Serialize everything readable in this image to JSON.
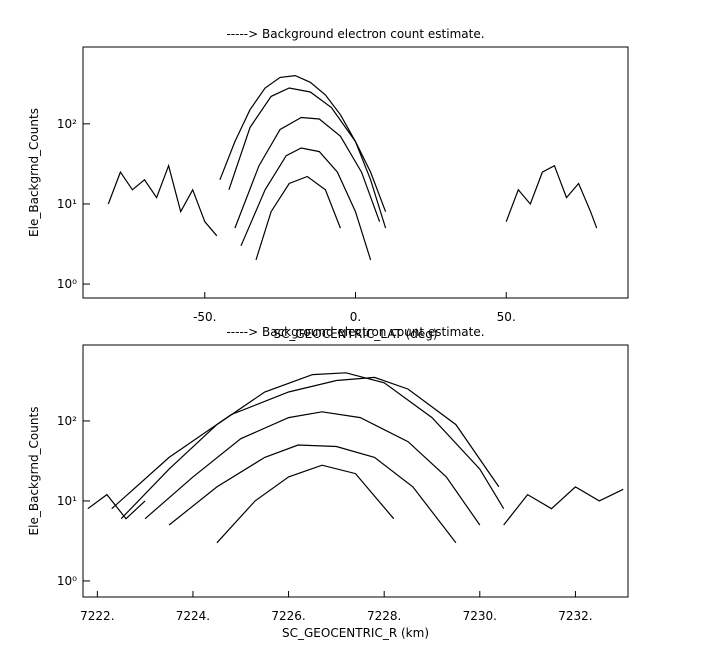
{
  "chart_data": [
    {
      "type": "line",
      "title": "-----> Background electron count estimate.",
      "xlabel": "SC_GEOCENTRIC_LAT (deg)",
      "ylabel": "Ele_Backgrnd_Counts",
      "log_y": true,
      "color": "#000000",
      "xlim": [
        -90.4,
        90.4
      ],
      "ylim": [
        0.67,
        910
      ],
      "xticks": [
        {
          "value": -50,
          "label": "-50."
        },
        {
          "value": 0,
          "label": "0."
        },
        {
          "value": 50,
          "label": "50."
        }
      ],
      "yticks": [
        {
          "value": 1,
          "label": "10⁰"
        },
        {
          "value": 10,
          "label": "10¹"
        },
        {
          "value": 100,
          "label": "10²"
        }
      ],
      "series": [
        {
          "x": [
            -45,
            -40,
            -35,
            -30,
            -25,
            -20,
            -15,
            -10,
            -5,
            0,
            5,
            10
          ],
          "values": [
            20,
            60,
            150,
            280,
            380,
            400,
            330,
            230,
            130,
            60,
            20,
            5
          ]
        },
        {
          "x": [
            -42,
            -35,
            -28,
            -22,
            -15,
            -8,
            0,
            5,
            10
          ],
          "values": [
            15,
            90,
            220,
            280,
            250,
            160,
            60,
            25,
            8
          ]
        },
        {
          "x": [
            -40,
            -32,
            -25,
            -18,
            -12,
            -5,
            2,
            8
          ],
          "values": [
            5,
            30,
            85,
            120,
            115,
            70,
            25,
            6
          ]
        },
        {
          "x": [
            -38,
            -30,
            -23,
            -18,
            -12,
            -6,
            0,
            5
          ],
          "values": [
            3,
            15,
            40,
            50,
            45,
            25,
            8,
            2
          ]
        },
        {
          "x": [
            -33,
            -28,
            -22,
            -16,
            -10,
            -5
          ],
          "values": [
            2,
            8,
            18,
            22,
            15,
            5
          ]
        },
        {
          "x": [
            -82,
            -78,
            -74,
            -70,
            -66,
            -62,
            -58,
            -54,
            -50,
            -46
          ],
          "values": [
            10,
            25,
            15,
            20,
            12,
            30,
            8,
            15,
            6,
            4
          ]
        },
        {
          "x": [
            50,
            54,
            58,
            62,
            66,
            70,
            74,
            78,
            80
          ],
          "values": [
            6,
            15,
            10,
            25,
            30,
            12,
            18,
            8,
            5
          ]
        }
      ]
    },
    {
      "type": "line",
      "title": "-----> Background electron count estimate.",
      "xlabel": "SC_GEOCENTRIC_R (km)",
      "ylabel": "Ele_Backgrnd_Counts",
      "log_y": true,
      "color": "#000000",
      "xlim": [
        7221.7,
        7233.1
      ],
      "ylim": [
        0.63,
        890
      ],
      "xticks": [
        {
          "value": 7222,
          "label": "7222."
        },
        {
          "value": 7224,
          "label": "7224."
        },
        {
          "value": 7226,
          "label": "7226."
        },
        {
          "value": 7228,
          "label": "7228."
        },
        {
          "value": 7230,
          "label": "7230."
        },
        {
          "value": 7232,
          "label": "7232."
        }
      ],
      "yticks": [
        {
          "value": 1,
          "label": "10⁰"
        },
        {
          "value": 10,
          "label": "10¹"
        },
        {
          "value": 100,
          "label": "10²"
        }
      ],
      "series": [
        {
          "x": [
            7222.5,
            7223.5,
            7224.5,
            7225.5,
            7226.5,
            7227.2,
            7228,
            7229,
            7230,
            7230.5
          ],
          "values": [
            6,
            25,
            90,
            230,
            380,
            400,
            300,
            110,
            25,
            8
          ]
        },
        {
          "x": [
            7222.3,
            7223.5,
            7224.8,
            7226,
            7227,
            7227.8,
            7228.5,
            7229.5,
            7230.4
          ],
          "values": [
            8,
            35,
            120,
            230,
            320,
            350,
            250,
            90,
            15
          ]
        },
        {
          "x": [
            7223,
            7224,
            7225,
            7226,
            7226.7,
            7227.5,
            7228.5,
            7229.3,
            7230
          ],
          "values": [
            6,
            20,
            60,
            110,
            130,
            110,
            55,
            20,
            5
          ]
        },
        {
          "x": [
            7223.5,
            7224.5,
            7225.5,
            7226.2,
            7227,
            7227.8,
            7228.6,
            7229.5
          ],
          "values": [
            5,
            15,
            35,
            50,
            48,
            35,
            15,
            3
          ]
        },
        {
          "x": [
            7224.5,
            7225.3,
            7226,
            7226.7,
            7227.4,
            7228.2
          ],
          "values": [
            3,
            10,
            20,
            28,
            22,
            6
          ]
        },
        {
          "x": [
            7230.5,
            7231,
            7231.5,
            7232,
            7232.5,
            7233
          ],
          "values": [
            5,
            12,
            8,
            15,
            10,
            14
          ]
        },
        {
          "x": [
            7221.8,
            7222.2,
            7222.6,
            7223
          ],
          "values": [
            8,
            12,
            6,
            10
          ]
        }
      ]
    }
  ]
}
